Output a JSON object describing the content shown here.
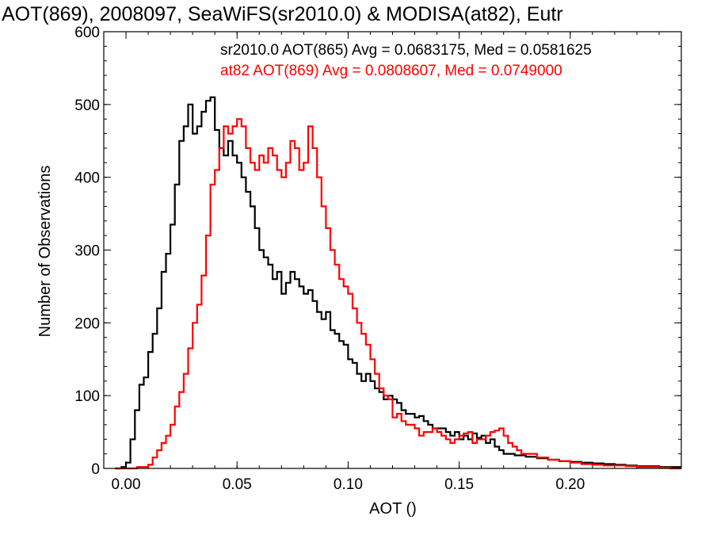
{
  "chart_data": {
    "type": "line",
    "title": "AOT(869), 2008097, SeaWiFS(sr2010.0) & MODISA(at82), Eutr",
    "xlabel": "AOT ()",
    "ylabel": "Number of Observations",
    "xlim": [
      -0.01,
      0.25
    ],
    "ylim": [
      0,
      600
    ],
    "x_ticks": [
      "0.00",
      "0.05",
      "0.10",
      "0.15",
      "0.20"
    ],
    "y_ticks": [
      "0",
      "100",
      "200",
      "300",
      "400",
      "500",
      "600"
    ],
    "grid": false,
    "legend_position": "top-right",
    "series": [
      {
        "name": "sr2010.0 AOT(865)",
        "color": "#000000",
        "stats_label": "sr2010.0 AOT(865) Avg = 0.0683175, Med = 0.0581625",
        "x": [
          -0.005,
          -0.002,
          0.0,
          0.002,
          0.004,
          0.006,
          0.008,
          0.01,
          0.012,
          0.014,
          0.016,
          0.018,
          0.02,
          0.022,
          0.024,
          0.026,
          0.028,
          0.03,
          0.032,
          0.034,
          0.036,
          0.038,
          0.04,
          0.042,
          0.044,
          0.046,
          0.048,
          0.05,
          0.052,
          0.054,
          0.056,
          0.058,
          0.06,
          0.062,
          0.064,
          0.066,
          0.068,
          0.07,
          0.072,
          0.074,
          0.076,
          0.078,
          0.08,
          0.082,
          0.084,
          0.086,
          0.088,
          0.09,
          0.092,
          0.094,
          0.096,
          0.098,
          0.1,
          0.102,
          0.104,
          0.106,
          0.108,
          0.11,
          0.112,
          0.114,
          0.116,
          0.118,
          0.12,
          0.122,
          0.124,
          0.126,
          0.128,
          0.13,
          0.132,
          0.134,
          0.136,
          0.138,
          0.14,
          0.142,
          0.144,
          0.146,
          0.148,
          0.15,
          0.152,
          0.154,
          0.156,
          0.158,
          0.16,
          0.162,
          0.164,
          0.166,
          0.168,
          0.17,
          0.175,
          0.18,
          0.185,
          0.19,
          0.195,
          0.2,
          0.205,
          0.21,
          0.215,
          0.22,
          0.225,
          0.23,
          0.235,
          0.24,
          0.245
        ],
        "y": [
          0,
          2,
          8,
          40,
          80,
          115,
          125,
          160,
          185,
          220,
          270,
          295,
          335,
          390,
          450,
          470,
          500,
          460,
          470,
          490,
          505,
          510,
          465,
          440,
          430,
          450,
          430,
          420,
          400,
          380,
          360,
          330,
          300,
          290,
          280,
          260,
          270,
          240,
          255,
          270,
          260,
          250,
          240,
          245,
          230,
          215,
          205,
          215,
          190,
          185,
          175,
          170,
          150,
          145,
          130,
          120,
          130,
          120,
          110,
          105,
          95,
          100,
          95,
          90,
          80,
          75,
          75,
          70,
          72,
          65,
          60,
          55,
          55,
          55,
          50,
          45,
          50,
          40,
          45,
          40,
          48,
          42,
          45,
          35,
          40,
          30,
          25,
          20,
          18,
          16,
          14,
          12,
          10,
          9,
          8,
          7,
          6,
          5,
          4,
          3,
          3,
          2,
          2
        ]
      },
      {
        "name": "at82 AOT(869)",
        "color": "#ff0000",
        "stats_label": "at82 AOT(869) Avg = 0.0808607, Med = 0.0749000",
        "x": [
          -0.005,
          0.0,
          0.005,
          0.01,
          0.012,
          0.014,
          0.016,
          0.018,
          0.02,
          0.022,
          0.024,
          0.026,
          0.028,
          0.03,
          0.032,
          0.034,
          0.036,
          0.038,
          0.04,
          0.042,
          0.044,
          0.046,
          0.048,
          0.05,
          0.052,
          0.054,
          0.056,
          0.058,
          0.06,
          0.062,
          0.064,
          0.066,
          0.068,
          0.07,
          0.072,
          0.074,
          0.076,
          0.078,
          0.08,
          0.082,
          0.084,
          0.086,
          0.088,
          0.09,
          0.092,
          0.094,
          0.096,
          0.098,
          0.1,
          0.102,
          0.104,
          0.106,
          0.108,
          0.11,
          0.112,
          0.114,
          0.116,
          0.118,
          0.12,
          0.122,
          0.124,
          0.126,
          0.128,
          0.13,
          0.132,
          0.134,
          0.136,
          0.138,
          0.14,
          0.142,
          0.144,
          0.146,
          0.148,
          0.15,
          0.152,
          0.154,
          0.156,
          0.158,
          0.16,
          0.162,
          0.164,
          0.166,
          0.168,
          0.17,
          0.172,
          0.174,
          0.176,
          0.178,
          0.18,
          0.185,
          0.19,
          0.195,
          0.2,
          0.205,
          0.21,
          0.215,
          0.22,
          0.225,
          0.23,
          0.235,
          0.24,
          0.245
        ],
        "y": [
          0,
          0,
          2,
          5,
          15,
          25,
          35,
          45,
          60,
          85,
          105,
          130,
          165,
          200,
          225,
          265,
          320,
          390,
          410,
          440,
          470,
          460,
          470,
          480,
          470,
          440,
          420,
          410,
          430,
          420,
          440,
          430,
          410,
          400,
          420,
          450,
          440,
          410,
          420,
          470,
          440,
          400,
          360,
          330,
          300,
          280,
          260,
          250,
          240,
          220,
          200,
          185,
          170,
          150,
          130,
          110,
          100,
          95,
          70,
          75,
          65,
          60,
          60,
          55,
          45,
          50,
          50,
          55,
          50,
          45,
          40,
          35,
          40,
          45,
          48,
          50,
          35,
          40,
          40,
          45,
          50,
          52,
          55,
          45,
          35,
          30,
          25,
          20,
          20,
          15,
          12,
          10,
          8,
          6,
          5,
          4,
          4,
          3,
          2,
          2,
          1,
          0
        ]
      }
    ]
  }
}
